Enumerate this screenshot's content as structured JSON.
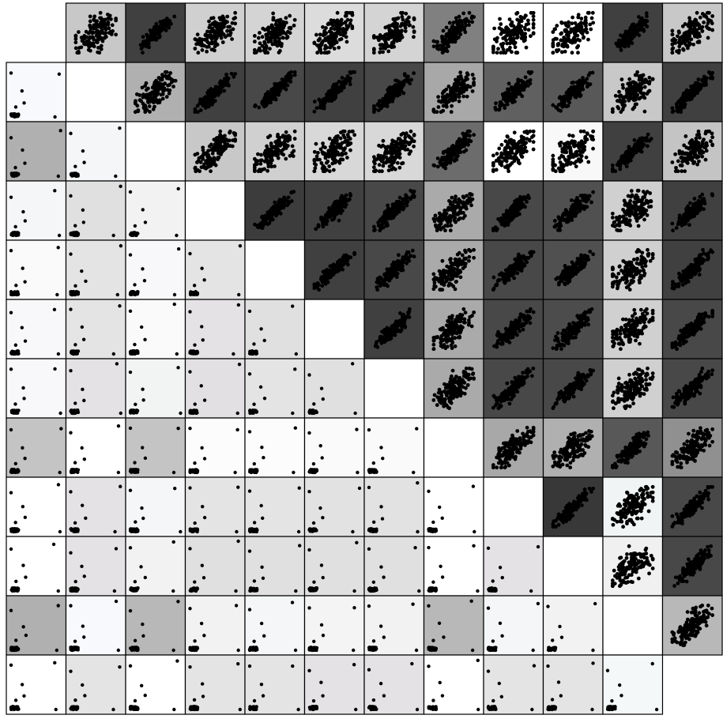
{
  "matrix": {
    "type": "scatter_matrix",
    "cells": [
      [
        null,
        "#c8c8c8",
        "#404040",
        "#d0d0d0",
        "#d4d4d4",
        "#dcdcdc",
        "#d4d4d4",
        "#808080",
        "#ffffff",
        "#ffffff",
        "#404040",
        "#c8c8c8"
      ],
      [
        "#f8f9fc",
        "#ffffff",
        "#b0b0b0",
        "#404040",
        "#484848",
        "#404040",
        "#484848",
        "#a8a8a8",
        "#606060",
        "#585858",
        "#c8c8c8",
        "#404040"
      ],
      [
        "#b0b0b0",
        "#f4f6f8",
        "#ffffff",
        "#c8c8c8",
        "#d0d0d0",
        "#d8d8d8",
        "#d8d8d8",
        "#6c6c6c",
        "#ffffff",
        "#f8f8f8",
        "#404040",
        "#c4c4c4"
      ],
      [
        "#f4f6f8",
        "#e0e0e0",
        "#f2f2f2",
        "#ffffff",
        "#3c3c3c",
        "#404040",
        "#484848",
        "#aaaaaa",
        "#484848",
        "#505050",
        "#d0d0d0",
        "#404040"
      ],
      [
        "#fafafa",
        "#e4e4e4",
        "#f8f8fa",
        "#e4e4e4",
        "#ffffff",
        "#404040",
        "#484848",
        "#aaaaaa",
        "#484848",
        "#505050",
        "#d0d0d0",
        "#404040"
      ],
      [
        "#f8f8fa",
        "#e4e4e4",
        "#fafafa",
        "#e4e2e4",
        "#e0e0e0",
        "#ffffff",
        "#404040",
        "#aaaaaa",
        "#484848",
        "#4c4c4c",
        "#d0d0d0",
        "#484848"
      ],
      [
        "#f8f8fa",
        "#e4e2e4",
        "#f2f4f4",
        "#e2e0e2",
        "#e4e4e4",
        "#e0e0e0",
        "#ffffff",
        "#aaaaaa",
        "#484848",
        "#484848",
        "#d0d0d0",
        "#484848"
      ],
      [
        "#c4c4c4",
        "#ffffff",
        "#c4c4c4",
        "#fcfcfc",
        "#fcfcfc",
        "#fafafa",
        "#fafafa",
        "#ffffff",
        "#a8a8a8",
        "#b0b0b0",
        "#585858",
        "#909090"
      ],
      [
        "#ffffff",
        "#e4e2e4",
        "#f4f6f8",
        "#e4e4e4",
        "#e4e4e4",
        "#e2e2e2",
        "#e2e2e2",
        "#ffffff",
        "#ffffff",
        "#383838",
        "#f0f4f4",
        "#484848"
      ],
      [
        "#ffffff",
        "#e4e2e4",
        "#f2f2f2",
        "#e0e0e0",
        "#e0e0e0",
        "#e0e0e0",
        "#e0e0e0",
        "#ffffff",
        "#e4e2e4",
        "#ffffff",
        "#f0f0f0",
        "#484848"
      ],
      [
        "#b0b0b0",
        "#f8f9fc",
        "#b8b8b8",
        "#f2f2f2",
        "#f4f6f8",
        "#f4f4f4",
        "#f2f2f2",
        "#b8b8b8",
        "#f4f6f8",
        "#f2f2f2",
        "#ffffff",
        "#b8b8b8"
      ],
      [
        "#ffffff",
        "#e4e4e4",
        "#ffffff",
        "#e4e4e4",
        "#e4e4e4",
        "#e4e2e4",
        "#e4e2e4",
        "#ffffff",
        "#e4e4e4",
        "#e4e4e4",
        "#f4f8f8",
        null
      ]
    ]
  }
}
